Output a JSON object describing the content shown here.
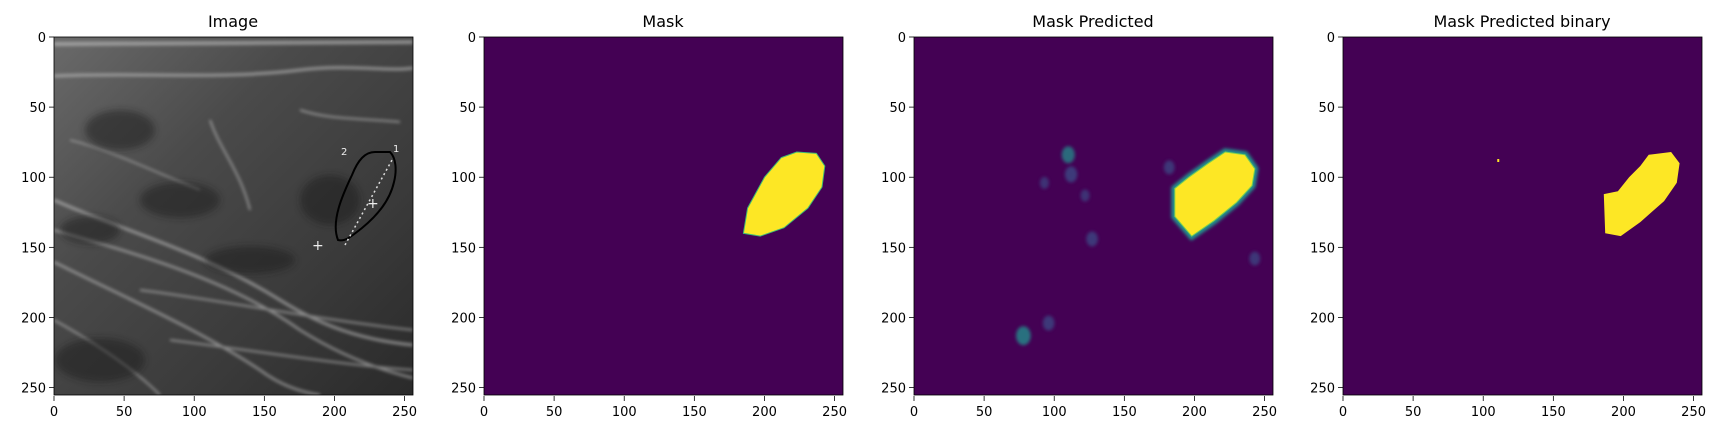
{
  "colors": {
    "background": "#440154",
    "foreground": "#fde725",
    "mid": "#21918c",
    "axis": "#000000"
  },
  "chart_data": [
    {
      "type": "heatmap",
      "title": "Image",
      "colormap": "gray",
      "xlim": [
        0,
        256
      ],
      "ylim": [
        256,
        0
      ],
      "xticks": [
        "0",
        "50",
        "100",
        "150",
        "200",
        "250"
      ],
      "yticks": [
        "0",
        "50",
        "100",
        "150",
        "200",
        "250"
      ],
      "annotations": [
        "1",
        "2",
        "+",
        "+"
      ]
    },
    {
      "type": "heatmap",
      "title": "Mask",
      "colormap": "viridis",
      "xlim": [
        0,
        256
      ],
      "ylim": [
        256,
        0
      ],
      "xticks": [
        "0",
        "50",
        "100",
        "150",
        "200",
        "250"
      ],
      "yticks": [
        "0",
        "50",
        "100",
        "150",
        "200",
        "250"
      ],
      "region_outline": [
        [
          185,
          140
        ],
        [
          188,
          122
        ],
        [
          200,
          100
        ],
        [
          212,
          86
        ],
        [
          223,
          82
        ],
        [
          237,
          83
        ],
        [
          243,
          92
        ],
        [
          241,
          107
        ],
        [
          231,
          122
        ],
        [
          214,
          136
        ],
        [
          197,
          142
        ]
      ]
    },
    {
      "type": "heatmap",
      "title": "Mask Predicted",
      "colormap": "viridis",
      "xlim": [
        0,
        256
      ],
      "ylim": [
        256,
        0
      ],
      "xticks": [
        "0",
        "50",
        "100",
        "150",
        "200",
        "250"
      ],
      "yticks": [
        "0",
        "50",
        "100",
        "150",
        "200",
        "250"
      ],
      "region_outline": [
        [
          186,
          128
        ],
        [
          186,
          108
        ],
        [
          196,
          100
        ],
        [
          210,
          90
        ],
        [
          222,
          82
        ],
        [
          236,
          84
        ],
        [
          243,
          94
        ],
        [
          241,
          106
        ],
        [
          230,
          118
        ],
        [
          214,
          131
        ],
        [
          198,
          142
        ]
      ],
      "faint_spots": [
        {
          "x": 110,
          "y": 84,
          "value": 0.45
        },
        {
          "x": 112,
          "y": 98,
          "value": 0.4
        },
        {
          "x": 127,
          "y": 144,
          "value": 0.35
        },
        {
          "x": 78,
          "y": 213,
          "value": 0.55
        },
        {
          "x": 96,
          "y": 204,
          "value": 0.35
        },
        {
          "x": 182,
          "y": 93,
          "value": 0.3
        },
        {
          "x": 243,
          "y": 158,
          "value": 0.3
        },
        {
          "x": 93,
          "y": 104,
          "value": 0.2
        },
        {
          "x": 122,
          "y": 113,
          "value": 0.2
        }
      ]
    },
    {
      "type": "heatmap",
      "title": "Mask Predicted binary",
      "colormap": "viridis",
      "xlim": [
        0,
        256
      ],
      "ylim": [
        256,
        0
      ],
      "xticks": [
        "0",
        "50",
        "100",
        "150",
        "200",
        "250"
      ],
      "yticks": [
        "0",
        "50",
        "100",
        "150",
        "200",
        "250"
      ],
      "region_outline": [
        [
          187,
          140
        ],
        [
          186,
          112
        ],
        [
          196,
          110
        ],
        [
          204,
          100
        ],
        [
          212,
          92
        ],
        [
          218,
          84
        ],
        [
          234,
          82
        ],
        [
          240,
          90
        ],
        [
          238,
          104
        ],
        [
          229,
          117
        ],
        [
          212,
          132
        ],
        [
          198,
          142
        ]
      ],
      "isolated_pixel": {
        "x": 110,
        "y": 87
      }
    }
  ]
}
